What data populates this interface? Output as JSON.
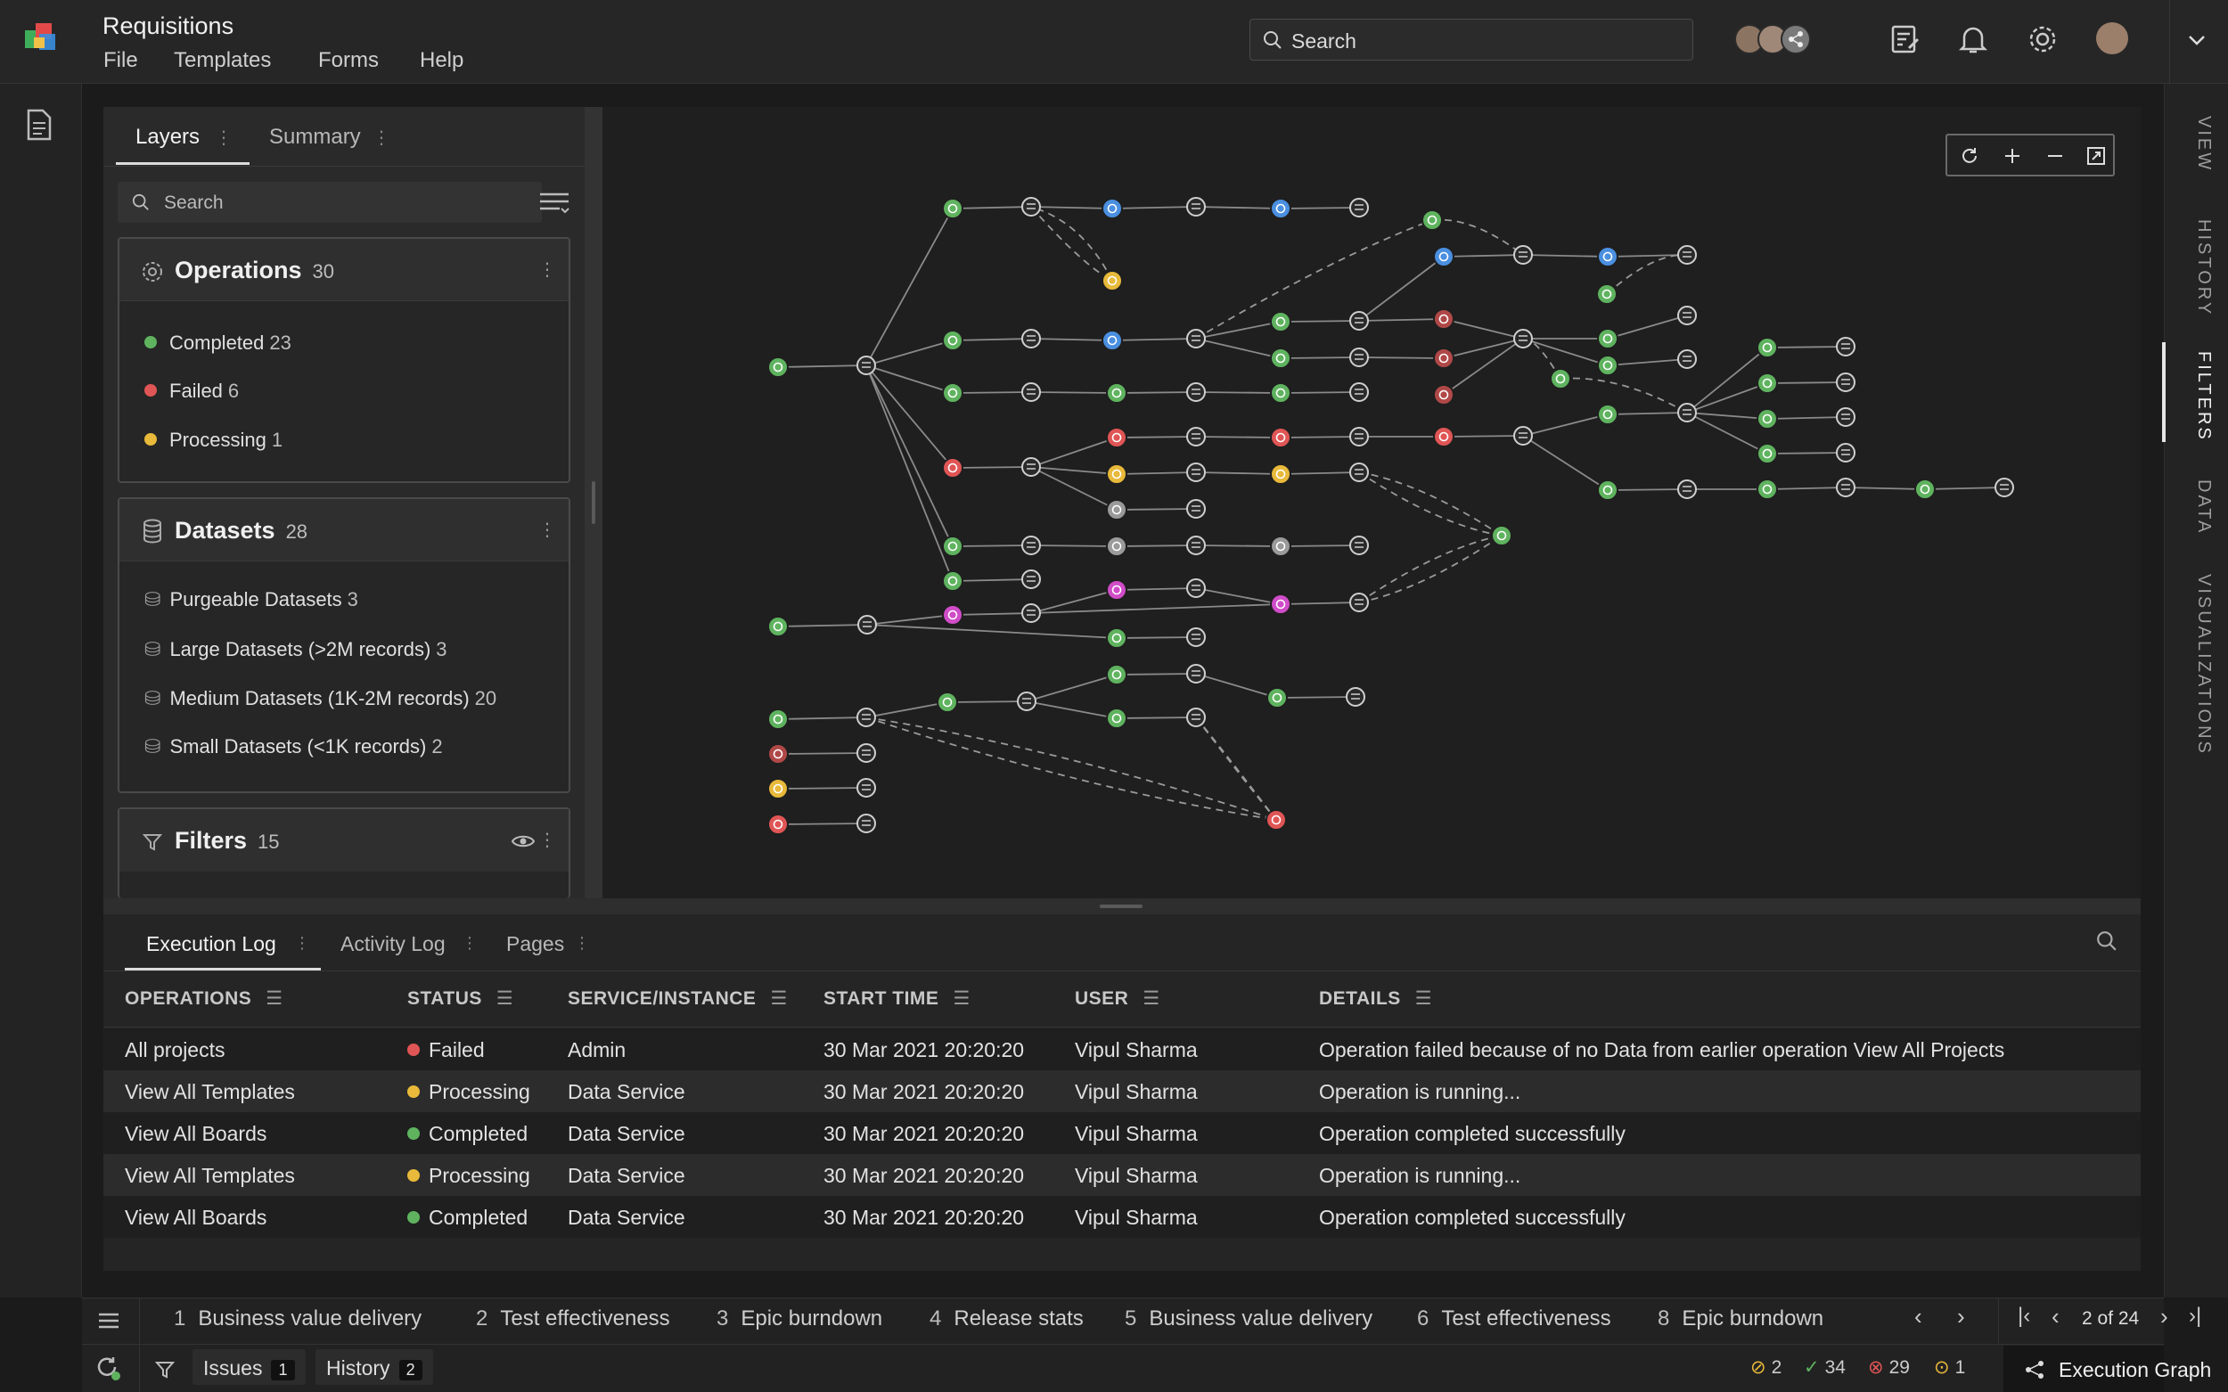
{
  "app": {
    "title": "Requisitions",
    "menu": [
      "File",
      "Templates",
      "Forms",
      "Help"
    ]
  },
  "search": {
    "placeholder": "Search"
  },
  "left_panel": {
    "tabs": [
      "Layers",
      "Summary"
    ],
    "search_placeholder": "Search",
    "operations": {
      "title": "Operations",
      "count": "30",
      "items": [
        {
          "label": "Completed",
          "count": "23",
          "color": "#5fb35f"
        },
        {
          "label": "Failed",
          "count": "6",
          "color": "#e05555"
        },
        {
          "label": "Processing",
          "count": "1",
          "color": "#e8b93a"
        }
      ]
    },
    "datasets": {
      "title": "Datasets",
      "count": "28",
      "items": [
        {
          "label": "Purgeable Datasets",
          "count": "3"
        },
        {
          "label": "Large Datasets (>2M records)",
          "count": "3"
        },
        {
          "label": "Medium Datasets (1K-2M records)",
          "count": "20"
        },
        {
          "label": "Small Datasets (<1K records)",
          "count": "2"
        }
      ]
    },
    "filters": {
      "title": "Filters",
      "count": "15"
    }
  },
  "right_rail": {
    "tabs": [
      "VIEW",
      "HISTORY",
      "FILTERS",
      "DATA",
      "VISUALIZATIONS"
    ],
    "active": "FILTERS"
  },
  "bottom": {
    "tabs": [
      "Execution Log",
      "Activity Log",
      "Pages"
    ],
    "columns": [
      "OPERATIONS",
      "STATUS",
      "SERVICE/INSTANCE",
      "START TIME",
      "USER",
      "DETAILS"
    ],
    "rows": [
      {
        "op": "All projects",
        "status": "Failed",
        "status_color": "#e05555",
        "service": "Admin",
        "start": "30 Mar 2021 20:20:20",
        "user": "Vipul Sharma",
        "details": "Operation failed because of no Data from earlier operation View All Projects"
      },
      {
        "op": "View All Templates",
        "status": "Processing",
        "status_color": "#e8b93a",
        "service": "Data Service",
        "start": "30 Mar 2021 20:20:20",
        "user": "Vipul Sharma",
        "details": "Operation is running..."
      },
      {
        "op": "View All Boards",
        "status": "Completed",
        "status_color": "#5fb35f",
        "service": "Data Service",
        "start": "30 Mar 2021 20:20:20",
        "user": "Vipul Sharma",
        "details": "Operation completed successfully"
      },
      {
        "op": "View All Templates",
        "status": "Processing",
        "status_color": "#e8b93a",
        "service": "Data Service",
        "start": "30 Mar 2021 20:20:20",
        "user": "Vipul Sharma",
        "details": "Operation is running..."
      },
      {
        "op": "View All Boards",
        "status": "Completed",
        "status_color": "#5fb35f",
        "service": "Data Service",
        "start": "30 Mar 2021 20:20:20",
        "user": "Vipul Sharma",
        "details": "Operation completed successfully"
      }
    ]
  },
  "pages": {
    "items": [
      {
        "num": "1",
        "label": "Business value delivery"
      },
      {
        "num": "2",
        "label": "Test effectiveness"
      },
      {
        "num": "3",
        "label": "Epic burndown"
      },
      {
        "num": "4",
        "label": "Release stats"
      },
      {
        "num": "5",
        "label": "Business value delivery"
      },
      {
        "num": "6",
        "label": "Test effectiveness"
      },
      {
        "num": "8",
        "label": "Epic burndown"
      }
    ],
    "pager": "2 of 24"
  },
  "status": {
    "issues_label": "Issues",
    "issues_count": "1",
    "history_label": "History",
    "history_count": "2",
    "warn": "2",
    "ok": "34",
    "err": "29",
    "pending": "1",
    "graph_label": "Execution Graph"
  },
  "colors": {
    "green": "#5fb35f",
    "red": "#e05555",
    "yellow": "#e8b93a",
    "blue": "#4a8fe0",
    "gray": "#9a9a9a",
    "magenta": "#d04cc8",
    "darkred": "#b04848"
  }
}
